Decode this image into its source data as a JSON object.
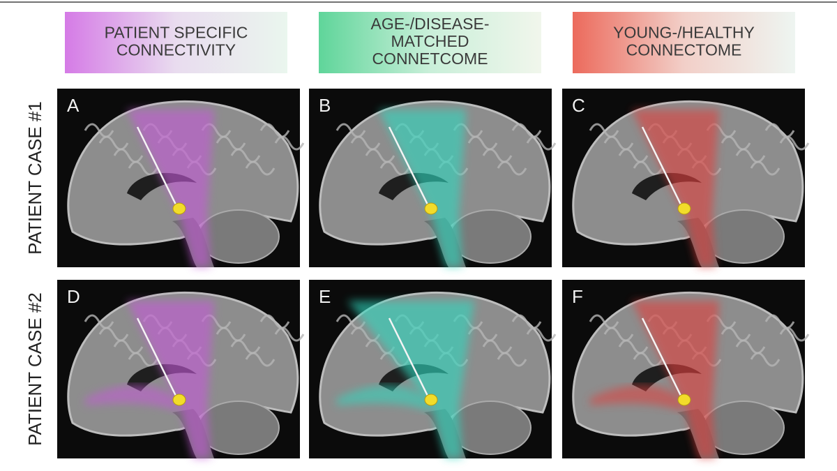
{
  "headers": [
    {
      "lines": [
        "PATIENT SPECIFIC",
        "CONNECTIVITY"
      ]
    },
    {
      "lines": [
        "AGE-/DISEASE-",
        "MATCHED",
        "CONNETCOME"
      ]
    },
    {
      "lines": [
        "YOUNG-/HEALTHY",
        "CONNECTOME"
      ]
    }
  ],
  "rows": [
    {
      "label": "PATIENT CASE #1",
      "panels": [
        "A",
        "B",
        "C"
      ]
    },
    {
      "label": "PATIENT CASE #2",
      "panels": [
        "D",
        "E",
        "F"
      ]
    }
  ]
}
